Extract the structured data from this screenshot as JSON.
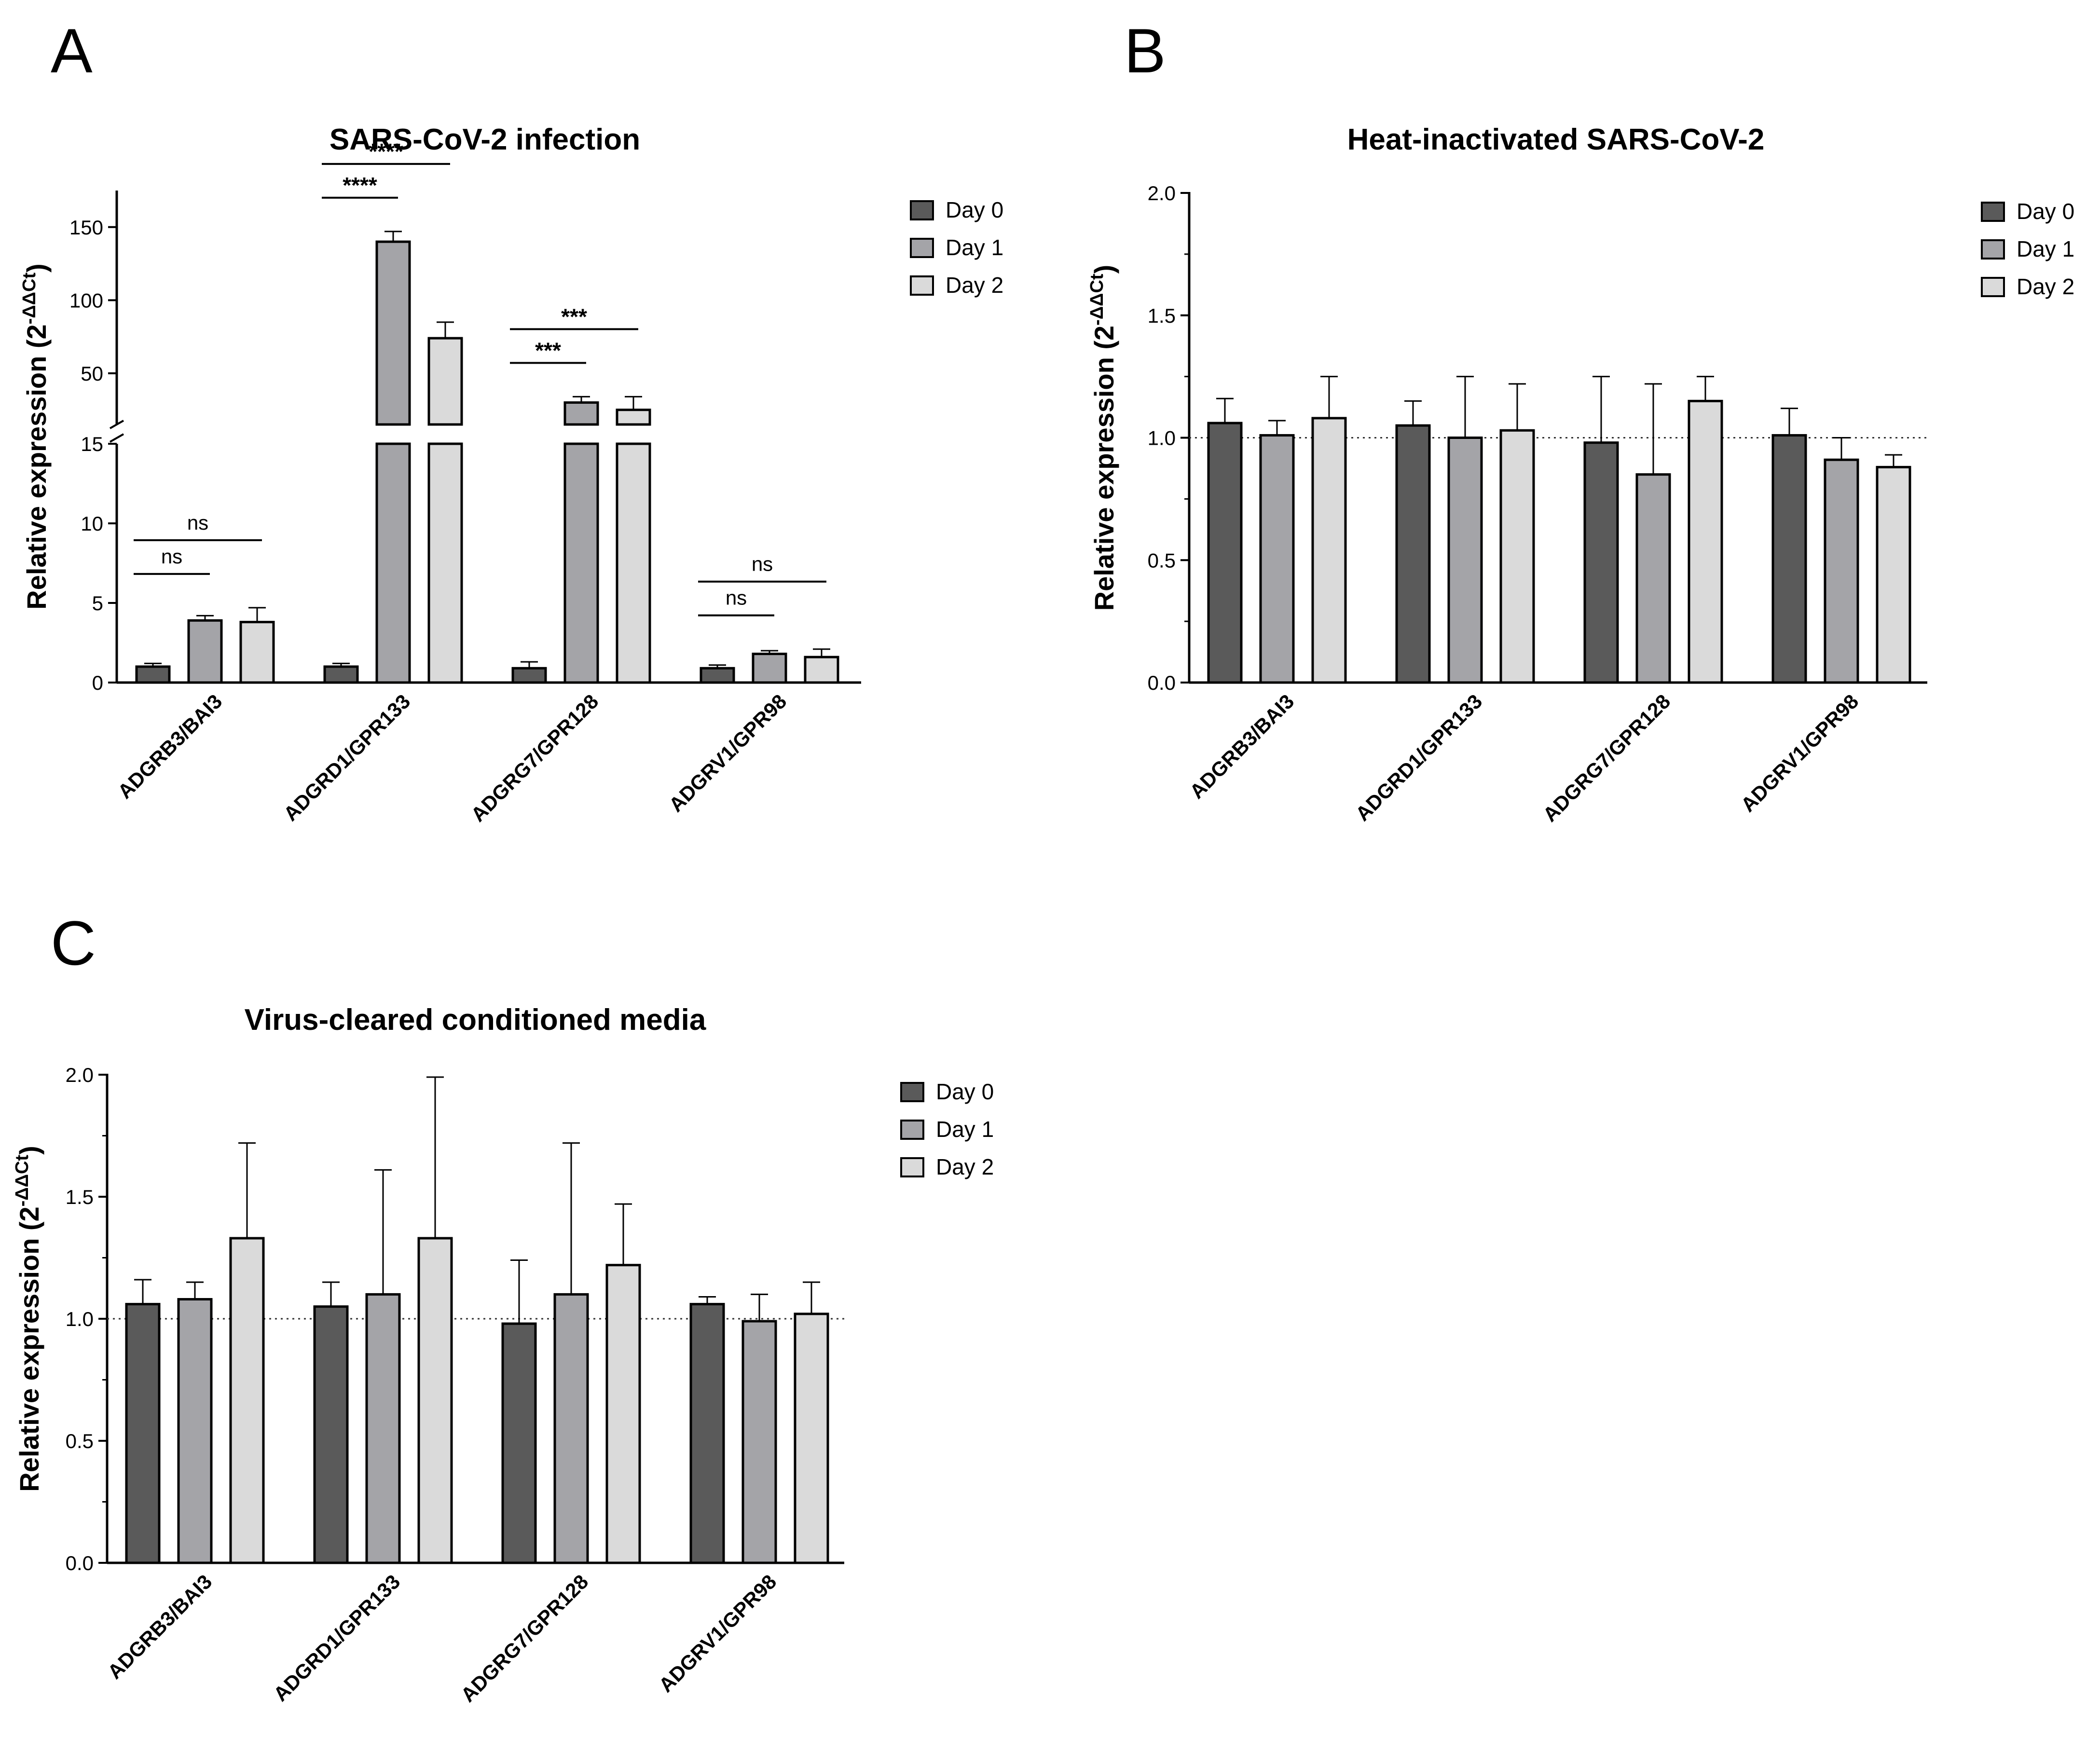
{
  "colors": {
    "day0": "#5a5a5a",
    "day1": "#a4a4a8",
    "day2": "#dadada",
    "stroke": "#000000"
  },
  "chart_data": [
    {
      "panel": "A",
      "type": "bar",
      "title": "SARS-CoV-2 infection",
      "ylabel_main": "Relative expression (2",
      "ylabel_sup": "-ΔΔCt",
      "ylabel_close": ")",
      "categories": [
        "ADGRB3/BAI3",
        "ADGRD1/GPR133",
        "ADGRG7/GPR128",
        "ADGRV1/GPR98"
      ],
      "broken_axis": true,
      "lower_range": [
        0,
        15
      ],
      "upper_range": [
        15,
        175
      ],
      "lower_ticks": [
        0,
        5,
        10,
        15
      ],
      "upper_ticks": [
        50,
        100,
        150
      ],
      "series": [
        {
          "name": "Day 0",
          "values": [
            1.0,
            1.0,
            0.9,
            0.9
          ],
          "errors": [
            0.2,
            0.2,
            0.4,
            0.2
          ]
        },
        {
          "name": "Day 1",
          "values": [
            3.9,
            140,
            30,
            1.8
          ],
          "errors": [
            0.3,
            7,
            4,
            0.2
          ]
        },
        {
          "name": "Day 2",
          "values": [
            3.8,
            74,
            25,
            1.6
          ],
          "errors": [
            0.9,
            11,
            9,
            0.5
          ]
        }
      ],
      "annotations": [
        {
          "category": 0,
          "from": 0,
          "to": 1,
          "text": "ns"
        },
        {
          "category": 0,
          "from": 0,
          "to": 2,
          "text": "ns"
        },
        {
          "category": 1,
          "from": 0,
          "to": 1,
          "text": "****"
        },
        {
          "category": 1,
          "from": 0,
          "to": 2,
          "text": "****"
        },
        {
          "category": 2,
          "from": 0,
          "to": 1,
          "text": "***"
        },
        {
          "category": 2,
          "from": 0,
          "to": 2,
          "text": "***"
        },
        {
          "category": 3,
          "from": 0,
          "to": 1,
          "text": "ns"
        },
        {
          "category": 3,
          "from": 0,
          "to": 2,
          "text": "ns"
        }
      ],
      "legend": [
        "Day 0",
        "Day 1",
        "Day 2"
      ]
    },
    {
      "panel": "B",
      "type": "bar",
      "title": "Heat-inactivated SARS-CoV-2",
      "ylabel_main": "Relative expression (2",
      "ylabel_sup": "-ΔΔCt",
      "ylabel_close": ")",
      "categories": [
        "ADGRB3/BAI3",
        "ADGRD1/GPR133",
        "ADGRG7/GPR128",
        "ADGRV1/GPR98"
      ],
      "ylim": [
        0,
        2.0
      ],
      "yticks": [
        "0.0",
        "0.5",
        "1.0",
        "1.5",
        "2.0"
      ],
      "reference_line": 1.0,
      "series": [
        {
          "name": "Day 0",
          "values": [
            1.06,
            1.05,
            0.98,
            1.01
          ],
          "errors": [
            0.1,
            0.1,
            0.27,
            0.11
          ]
        },
        {
          "name": "Day 1",
          "values": [
            1.01,
            1.0,
            0.85,
            0.91
          ],
          "errors": [
            0.06,
            0.25,
            0.37,
            0.09
          ]
        },
        {
          "name": "Day 2",
          "values": [
            1.08,
            1.03,
            1.15,
            0.88
          ],
          "errors": [
            0.17,
            0.19,
            0.1,
            0.05
          ]
        }
      ],
      "legend": [
        "Day 0",
        "Day 1",
        "Day 2"
      ]
    },
    {
      "panel": "C",
      "type": "bar",
      "title": "Virus-cleared conditioned media",
      "ylabel_main": "Relative expression (2",
      "ylabel_sup": "-ΔΔCt",
      "ylabel_close": ")",
      "categories": [
        "ADGRB3/BAI3",
        "ADGRD1/GPR133",
        "ADGRG7/GPR128",
        "ADGRV1/GPR98"
      ],
      "ylim": [
        0,
        2.0
      ],
      "yticks": [
        "0.0",
        "0.5",
        "1.0",
        "1.5",
        "2.0"
      ],
      "reference_line": 1.0,
      "series": [
        {
          "name": "Day 0",
          "values": [
            1.06,
            1.05,
            0.98,
            1.06
          ],
          "errors": [
            0.1,
            0.1,
            0.26,
            0.03
          ]
        },
        {
          "name": "Day 1",
          "values": [
            1.08,
            1.1,
            1.1,
            0.99
          ],
          "errors": [
            0.07,
            0.51,
            0.62,
            0.11
          ]
        },
        {
          "name": "Day 2",
          "values": [
            1.33,
            1.33,
            1.22,
            1.02
          ],
          "errors": [
            0.39,
            0.66,
            0.25,
            0.13
          ]
        }
      ],
      "legend": [
        "Day 0",
        "Day 1",
        "Day 2"
      ]
    }
  ]
}
